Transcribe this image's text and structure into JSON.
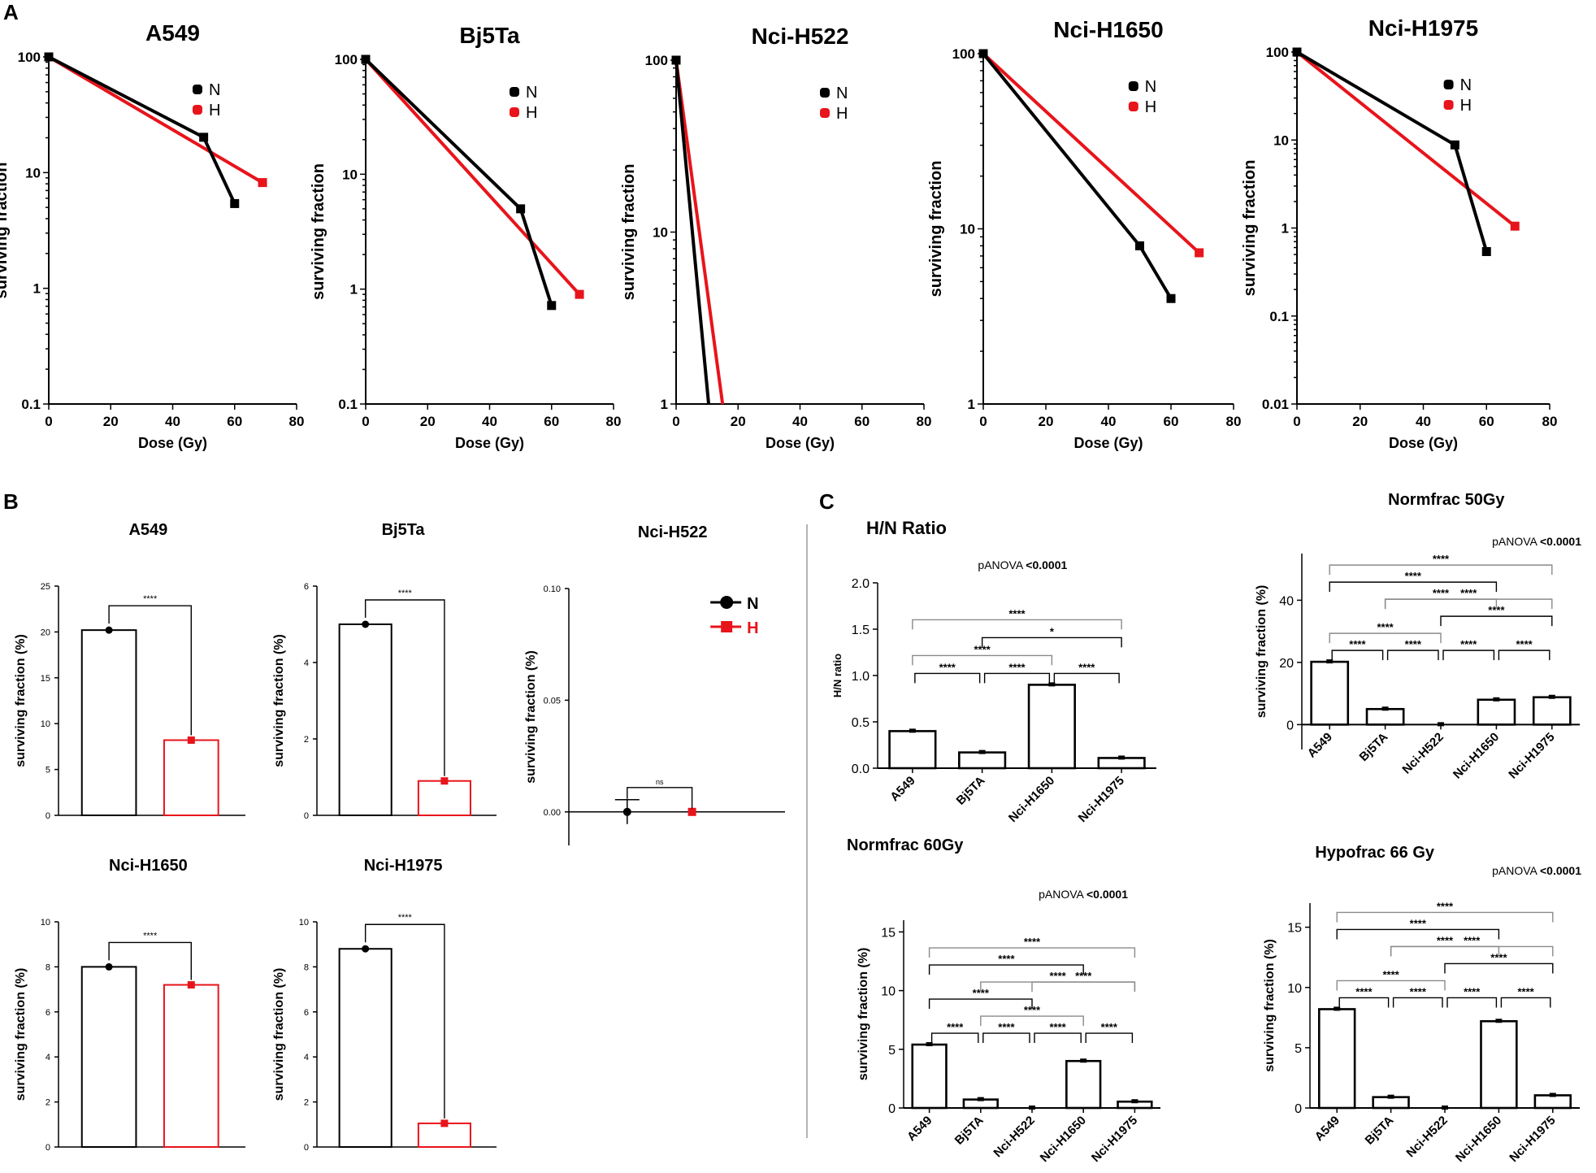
{
  "panels": {
    "a": "A",
    "b": "B",
    "c": "C"
  },
  "colors": {
    "N": "#000000",
    "H": "#e8141b"
  },
  "chart_data": [
    {
      "id": "A1",
      "panel": "A",
      "type": "line",
      "title": "A549",
      "xlabel": "Dose (Gy)",
      "ylabel": "surviving fraction",
      "yscale": "log",
      "xlim": [
        0,
        80
      ],
      "ylim": [
        0.1,
        100
      ],
      "xticks": [
        "0",
        "20",
        "40",
        "60",
        "80"
      ],
      "yticks": [
        "0.1",
        "1",
        "10",
        "100"
      ],
      "series": [
        {
          "name": "N",
          "x": [
            0,
            50,
            60
          ],
          "y": [
            100,
            20.2,
            5.4
          ]
        },
        {
          "name": "H",
          "x": [
            0,
            69
          ],
          "y": [
            100,
            8.2
          ]
        }
      ]
    },
    {
      "id": "A2",
      "panel": "A",
      "type": "line",
      "title": "Bj5Ta",
      "xlabel": "Dose (Gy)",
      "ylabel": "surviving fraction",
      "yscale": "log",
      "xlim": [
        0,
        80
      ],
      "ylim": [
        0.1,
        100
      ],
      "xticks": [
        "0",
        "20",
        "40",
        "60",
        "80"
      ],
      "yticks": [
        "0.1",
        "1",
        "10",
        "100"
      ],
      "series": [
        {
          "name": "N",
          "x": [
            0,
            50,
            60
          ],
          "y": [
            100,
            5.0,
            0.72
          ]
        },
        {
          "name": "H",
          "x": [
            0,
            69
          ],
          "y": [
            100,
            0.9
          ]
        }
      ]
    },
    {
      "id": "A3",
      "panel": "A",
      "type": "line",
      "title": "Nci-H522",
      "xlabel": "Dose (Gy)",
      "ylabel": "surviving fraction",
      "yscale": "log",
      "xlim": [
        0,
        80
      ],
      "ylim": [
        1,
        100
      ],
      "xticks": [
        "0",
        "20",
        "40",
        "60",
        "80"
      ],
      "yticks": [
        "1",
        "10",
        "100"
      ],
      "series": [
        {
          "name": "N",
          "x": [
            0,
            10.5
          ],
          "y": [
            100,
            1
          ]
        },
        {
          "name": "H",
          "x": [
            0,
            15
          ],
          "y": [
            100,
            1
          ]
        }
      ]
    },
    {
      "id": "A4",
      "panel": "A",
      "type": "line",
      "title": "Nci-H1650",
      "xlabel": "Dose (Gy)",
      "ylabel": "surviving fraction",
      "yscale": "log",
      "xlim": [
        0,
        80
      ],
      "ylim": [
        1,
        100
      ],
      "xticks": [
        "0",
        "20",
        "40",
        "60",
        "80"
      ],
      "yticks": [
        "1",
        "10",
        "100"
      ],
      "series": [
        {
          "name": "N",
          "x": [
            0,
            50,
            60
          ],
          "y": [
            100,
            8.0,
            4.0
          ]
        },
        {
          "name": "H",
          "x": [
            0,
            69
          ],
          "y": [
            100,
            7.3
          ]
        }
      ]
    },
    {
      "id": "A5",
      "panel": "A",
      "type": "line",
      "title": "Nci-H1975",
      "xlabel": "Dose (Gy)",
      "ylabel": "surviving fraction",
      "yscale": "log",
      "xlim": [
        0,
        80
      ],
      "ylim": [
        0.01,
        100
      ],
      "xticks": [
        "0",
        "20",
        "40",
        "60",
        "80"
      ],
      "yticks": [
        "0.01",
        "0.1",
        "1",
        "10",
        "100"
      ],
      "series": [
        {
          "name": "N",
          "x": [
            0,
            50,
            60
          ],
          "y": [
            100,
            8.8,
            0.54
          ]
        },
        {
          "name": "H",
          "x": [
            0,
            69
          ],
          "y": [
            100,
            1.05
          ]
        }
      ]
    },
    {
      "id": "B1",
      "panel": "B",
      "type": "bar",
      "title": "A549",
      "ylabel": "surviving fraction (%)",
      "ylim": [
        0,
        25
      ],
      "yticks": [
        "0",
        "5",
        "10",
        "15",
        "20",
        "25"
      ],
      "categories": [
        "N",
        "H"
      ],
      "values": [
        20.2,
        8.2
      ],
      "significance": "****"
    },
    {
      "id": "B2",
      "panel": "B",
      "type": "bar",
      "title": "Bj5Ta",
      "ylabel": "surviving fraction (%)",
      "ylim": [
        0,
        6
      ],
      "yticks": [
        "0",
        "2",
        "4",
        "6"
      ],
      "categories": [
        "N",
        "H"
      ],
      "values": [
        5.0,
        0.9
      ],
      "significance": "****"
    },
    {
      "id": "B3",
      "panel": "B",
      "type": "scatter",
      "title": "Nci-H522",
      "ylabel": "surviving fraction (%)",
      "ylim": [
        -0.015,
        0.1
      ],
      "yticks": [
        "0.00",
        "0.05",
        "0.10"
      ],
      "categories": [
        "N",
        "H"
      ],
      "values": [
        0.0,
        0.0
      ],
      "significance": "ns",
      "legend": [
        "N",
        "H"
      ]
    },
    {
      "id": "B4",
      "panel": "B",
      "type": "bar",
      "title": "Nci-H1650",
      "ylabel": "surviving fraction (%)",
      "ylim": [
        0,
        10
      ],
      "yticks": [
        "0",
        "2",
        "4",
        "6",
        "8",
        "10"
      ],
      "categories": [
        "N",
        "H"
      ],
      "values": [
        8.0,
        7.2
      ],
      "significance": "****"
    },
    {
      "id": "B5",
      "panel": "B",
      "type": "bar",
      "title": "Nci-H1975",
      "ylabel": "surviving fraction (%)",
      "ylim": [
        0,
        10
      ],
      "yticks": [
        "0",
        "2",
        "4",
        "6",
        "8",
        "10"
      ],
      "categories": [
        "N",
        "H"
      ],
      "values": [
        8.8,
        1.05
      ],
      "significance": "****"
    },
    {
      "id": "C1",
      "panel": "C",
      "type": "bar",
      "title": "H/N Ratio",
      "ylabel": "H/N ratio",
      "ylim": [
        0,
        2.0
      ],
      "yticks": [
        "0.0",
        "0.5",
        "1.0",
        "1.5",
        "2.0"
      ],
      "categories": [
        "A549",
        "Bj5TA",
        "Nci-H1650",
        "Nci-H1975"
      ],
      "values": [
        0.4,
        0.17,
        0.9,
        0.11
      ],
      "anova_label": "pANOVA",
      "anova_value": "<0.0001",
      "comparisons": [
        {
          "a": 0,
          "b": 1,
          "label": "****"
        },
        {
          "a": 1,
          "b": 2,
          "label": "****"
        },
        {
          "a": 2,
          "b": 3,
          "label": "****"
        },
        {
          "a": 0,
          "b": 2,
          "label": "****"
        },
        {
          "a": 1,
          "b": 3,
          "label": "*"
        },
        {
          "a": 0,
          "b": 3,
          "label": "****"
        }
      ]
    },
    {
      "id": "C2",
      "panel": "C",
      "type": "bar",
      "title": "Normfrac 50Gy",
      "ylabel": "surviving fraction (%)",
      "ylim": [
        -8,
        55
      ],
      "yticks": [
        "0",
        "20",
        "40"
      ],
      "categories": [
        "A549",
        "Bj5TA",
        "Nci-H522",
        "Nci-H1650",
        "Nci-H1975"
      ],
      "values": [
        20.2,
        5.0,
        0.0,
        8.0,
        8.8
      ],
      "anova_label": "pANOVA",
      "anova_value": "<0.0001",
      "comparisons": [
        {
          "a": 0,
          "b": 1,
          "label": "****"
        },
        {
          "a": 1,
          "b": 2,
          "label": "****"
        },
        {
          "a": 2,
          "b": 3,
          "label": "****"
        },
        {
          "a": 3,
          "b": 4,
          "label": "****"
        },
        {
          "a": 0,
          "b": 2,
          "label": "****"
        },
        {
          "a": 2,
          "b": 4,
          "label": "****"
        },
        {
          "a": 1,
          "b": 3,
          "label": "****"
        },
        {
          "a": 1,
          "b": 4,
          "label": "****"
        },
        {
          "a": 0,
          "b": 3,
          "label": "****"
        },
        {
          "a": 0,
          "b": 4,
          "label": "****"
        }
      ]
    },
    {
      "id": "C3",
      "panel": "C",
      "type": "bar",
      "title": "Normfrac 60Gy",
      "ylabel": "surviving fraction (%)",
      "ylim": [
        0,
        16
      ],
      "yticks": [
        "0",
        "5",
        "10",
        "15"
      ],
      "categories": [
        "A549",
        "Bj5TA",
        "Nci-H522",
        "Nci-H1650",
        "Nci-H1975"
      ],
      "values": [
        5.4,
        0.72,
        0.0,
        4.0,
        0.54
      ],
      "anova_label": "pANOVA",
      "anova_value": "<0.0001",
      "comparisons": [
        {
          "a": 0,
          "b": 1,
          "label": "****"
        },
        {
          "a": 1,
          "b": 2,
          "label": "****"
        },
        {
          "a": 2,
          "b": 3,
          "label": "****"
        },
        {
          "a": 3,
          "b": 4,
          "label": "****"
        },
        {
          "a": 1,
          "b": 3,
          "label": "****"
        },
        {
          "a": 0,
          "b": 2,
          "label": "****"
        },
        {
          "a": 2,
          "b": 4,
          "label": "****"
        },
        {
          "a": 1,
          "b": 4,
          "label": "****"
        },
        {
          "a": 0,
          "b": 3,
          "label": "****"
        },
        {
          "a": 0,
          "b": 4,
          "label": "****"
        }
      ]
    },
    {
      "id": "C4",
      "panel": "C",
      "type": "bar",
      "title": "Hypofrac 66 Gy",
      "ylabel": "surviving fraction (%)",
      "ylim": [
        0,
        17
      ],
      "yticks": [
        "0",
        "5",
        "10",
        "15"
      ],
      "categories": [
        "A549",
        "Bj5TA",
        "Nci-H522",
        "Nci-H1650",
        "Nci-H1975"
      ],
      "values": [
        8.2,
        0.9,
        0.0,
        7.2,
        1.05
      ],
      "anova_label": "pANOVA",
      "anova_value": "<0.0001",
      "comparisons": [
        {
          "a": 0,
          "b": 1,
          "label": "****"
        },
        {
          "a": 1,
          "b": 2,
          "label": "****"
        },
        {
          "a": 2,
          "b": 3,
          "label": "****"
        },
        {
          "a": 3,
          "b": 4,
          "label": "****"
        },
        {
          "a": 0,
          "b": 2,
          "label": "****"
        },
        {
          "a": 2,
          "b": 4,
          "label": "****"
        },
        {
          "a": 1,
          "b": 3,
          "label": "****"
        },
        {
          "a": 1,
          "b": 4,
          "label": "****"
        },
        {
          "a": 0,
          "b": 3,
          "label": "****"
        },
        {
          "a": 0,
          "b": 4,
          "label": "****"
        }
      ]
    }
  ]
}
